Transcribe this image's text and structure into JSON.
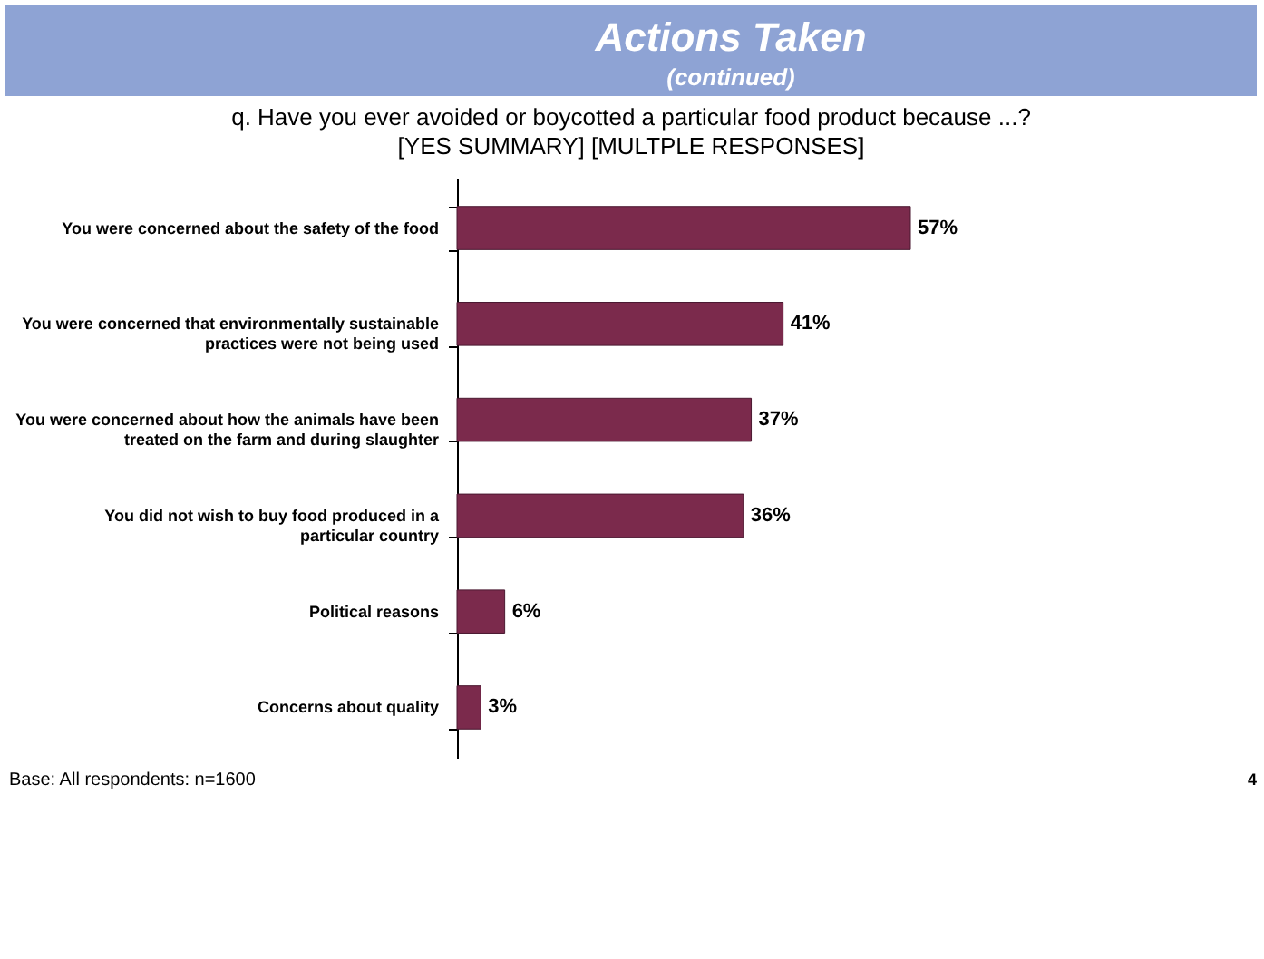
{
  "chart_data": {
    "type": "bar",
    "orientation": "horizontal",
    "title": "Actions Taken",
    "subtitle": "(continued)",
    "annotations": [
      "q. Have you ever avoided or boycotted a particular food product because ...?",
      "[YES SUMMARY]  [MULTPLE RESPONSES]",
      "Base: All respondents: n=1600",
      "4"
    ],
    "categories": [
      "You were concerned about the safety of the food",
      "You were concerned that environmentally sustainable practices were not being used",
      "You were concerned about how the animals have been treated on the farm and during slaughter",
      "You did not wish to buy food produced in a particular country",
      "Political reasons",
      "Concerns about quality"
    ],
    "values": [
      57,
      41,
      37,
      36,
      6,
      3
    ],
    "value_labels": [
      "57%",
      "41%",
      "37%",
      "36%",
      "6%",
      "3%"
    ],
    "color": "#7b2a4c",
    "grid": false
  }
}
